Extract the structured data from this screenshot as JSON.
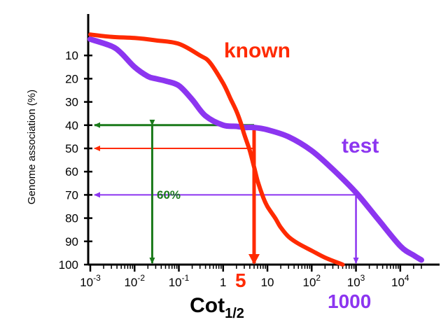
{
  "chart_data": {
    "type": "line",
    "xlabel": "Cot",
    "xlabel_subscript": "1/2",
    "ylabel": "Genome association (%)",
    "x_scale": "log",
    "xlim": [
      0.001,
      40000
    ],
    "ylim": [
      100,
      0
    ],
    "grid": false,
    "x_ticks": [
      {
        "value": 0.001,
        "base": "10",
        "exp": "-3"
      },
      {
        "value": 0.01,
        "base": "10",
        "exp": "-2"
      },
      {
        "value": 0.1,
        "base": "10",
        "exp": "-1"
      },
      {
        "value": 1,
        "base": "1",
        "exp": ""
      },
      {
        "value": 10,
        "base": "10",
        "exp": ""
      },
      {
        "value": 100,
        "base": "10",
        "exp": "2"
      },
      {
        "value": 1000,
        "base": "10",
        "exp": "3"
      },
      {
        "value": 10000,
        "base": "10",
        "exp": "4"
      }
    ],
    "y_ticks": [
      10,
      20,
      30,
      40,
      50,
      60,
      70,
      80,
      90,
      100
    ],
    "series": [
      {
        "name": "known",
        "color": "#ff2a00",
        "x": [
          0.001,
          0.003,
          0.01,
          0.03,
          0.1,
          0.3,
          0.5,
          1,
          1.5,
          2,
          2.5,
          3,
          4,
          5,
          6,
          8,
          10,
          15,
          20,
          30,
          50,
          100,
          200,
          500
        ],
        "y": [
          1,
          2,
          2.5,
          3.5,
          5,
          10,
          13,
          22,
          29,
          34,
          39,
          44,
          51,
          58,
          64,
          71,
          75,
          80,
          84,
          88,
          91,
          94,
          97,
          100
        ]
      },
      {
        "name": "test",
        "color": "#8c35f0",
        "x": [
          0.001,
          0.003,
          0.005,
          0.01,
          0.02,
          0.03,
          0.05,
          0.1,
          0.2,
          0.4,
          1,
          2,
          3,
          5,
          10,
          30,
          100,
          300,
          1000,
          3000,
          10000,
          20000,
          30000
        ],
        "y": [
          3,
          6,
          9,
          15,
          19,
          20,
          21,
          23,
          29,
          36,
          40,
          40.5,
          41,
          41,
          42,
          45,
          51,
          59,
          69,
          80,
          92,
          96,
          98
        ]
      }
    ],
    "reference_lines": [
      {
        "color": "#1a7a1a",
        "y": 40,
        "x_from": 5,
        "x_to": 0.001,
        "arrow": "left"
      },
      {
        "color": "#ff2a00",
        "y": 50,
        "x_from": 5,
        "x_to": 0.001,
        "arrow": "left"
      },
      {
        "color": "#8c35f0",
        "y": 70,
        "x_from": 1000,
        "x_to": 0.001,
        "arrow": "left"
      }
    ],
    "vertical_arrows": [
      {
        "color": "#ff2a00",
        "x": 5,
        "y_from": 40,
        "y_to": 100
      },
      {
        "color": "#8c35f0",
        "x": 1000,
        "y_from": 70,
        "y_to": 100
      },
      {
        "color": "#1a7a1a",
        "x": 0.025,
        "y_from": 40,
        "y_to": 100,
        "double": true
      }
    ],
    "annotations": {
      "known_label": "known",
      "test_label": "test",
      "span_label": "60%",
      "known_cot": "5",
      "test_cot": "1000"
    }
  }
}
